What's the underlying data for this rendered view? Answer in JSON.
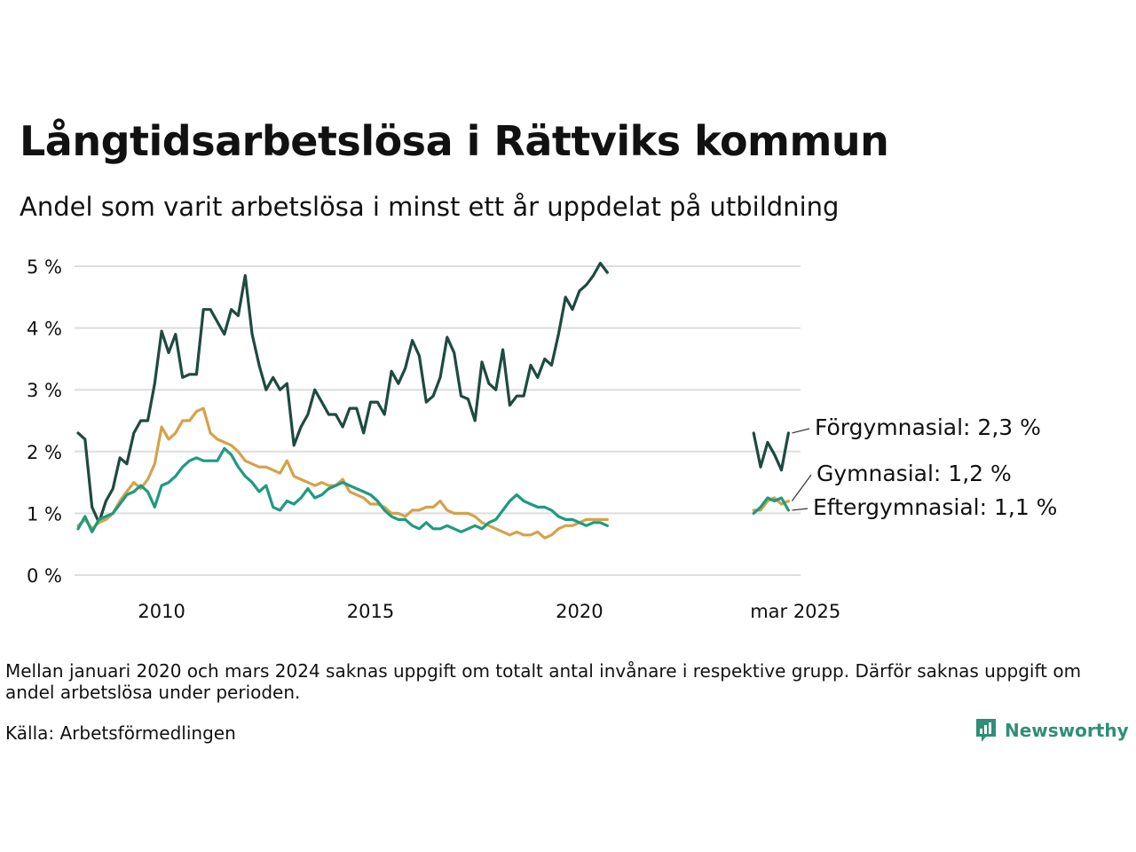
{
  "header": {
    "title": "Långtidsarbetslösa i Rättviks kommun",
    "subtitle": "Andel som varit arbetslösa i minst ett år uppdelat på utbildning"
  },
  "footer": {
    "note": "Mellan januari 2020 och mars 2024 saknas uppgift om totalt antal invånare i respektive grupp. Därför saknas uppgift om andel arbetslösa under perioden.",
    "source": "Källa: Arbetsförmedlingen",
    "brand": "Newsworthy"
  },
  "colors": {
    "forgymnasial": "#1e4a40",
    "gymnasial": "#d4a24c",
    "eftergymnasial": "#1f9a80",
    "grid": "#dddddd",
    "brand": "#2f8f76"
  },
  "chart_data": {
    "type": "line",
    "ylim": [
      0,
      5
    ],
    "yticks": [
      "0 %",
      "1 %",
      "2 %",
      "3 %",
      "4 %",
      "5 %"
    ],
    "xticks": [
      {
        "x": 2010.0,
        "label": "2010"
      },
      {
        "x": 2015.0,
        "label": "2015"
      },
      {
        "x": 2020.0,
        "label": "2020"
      },
      {
        "x": 2025.17,
        "label": "mar 2025"
      }
    ],
    "grid": true,
    "series": [
      {
        "key": "forgymnasial",
        "end_label": "Förgymnasial: 2,3 %",
        "segments": [
          {
            "start": 2008.0,
            "step": 0.16667,
            "values": [
              2.3,
              2.2,
              1.1,
              0.85,
              1.2,
              1.4,
              1.9,
              1.8,
              2.3,
              2.5,
              2.5,
              3.1,
              3.95,
              3.6,
              3.9,
              3.2,
              3.25,
              3.25,
              4.3,
              4.3,
              4.1,
              3.9,
              4.3,
              4.2,
              4.85,
              3.9,
              3.4,
              3.0,
              3.2,
              3.0,
              3.1,
              2.1,
              2.4,
              2.6,
              3.0,
              2.8,
              2.6,
              2.6,
              2.4,
              2.7,
              2.7,
              2.3,
              2.8,
              2.8,
              2.6,
              3.3,
              3.1,
              3.35,
              3.8,
              3.55,
              2.8,
              2.9,
              3.2,
              3.85,
              3.6,
              2.9,
              2.85,
              2.5,
              3.45,
              3.1,
              3.0,
              3.65,
              2.75,
              2.9,
              2.9,
              3.4,
              3.2,
              3.5,
              3.4,
              3.9,
              4.5,
              4.3,
              4.6,
              4.7,
              4.85,
              5.05,
              4.9
            ]
          },
          {
            "start": 2024.17,
            "step": 0.16667,
            "values": [
              2.3,
              1.75,
              2.15,
              1.95,
              1.7,
              2.3
            ]
          }
        ]
      },
      {
        "key": "gymnasial",
        "end_label": "Gymnasial: 1,2 %",
        "segments": [
          {
            "start": 2008.0,
            "step": 0.16667,
            "values": [
              0.8,
              0.9,
              0.75,
              0.85,
              0.9,
              1.0,
              1.2,
              1.35,
              1.5,
              1.4,
              1.55,
              1.8,
              2.4,
              2.2,
              2.3,
              2.5,
              2.5,
              2.65,
              2.7,
              2.3,
              2.2,
              2.15,
              2.1,
              2.0,
              1.85,
              1.8,
              1.75,
              1.75,
              1.7,
              1.65,
              1.85,
              1.6,
              1.55,
              1.5,
              1.45,
              1.5,
              1.45,
              1.45,
              1.55,
              1.35,
              1.3,
              1.25,
              1.15,
              1.15,
              1.1,
              1.0,
              1.0,
              0.95,
              1.05,
              1.05,
              1.1,
              1.1,
              1.2,
              1.05,
              1.0,
              1.0,
              1.0,
              0.95,
              0.85,
              0.8,
              0.75,
              0.7,
              0.65,
              0.7,
              0.65,
              0.65,
              0.7,
              0.6,
              0.65,
              0.75,
              0.8,
              0.8,
              0.85,
              0.9,
              0.9,
              0.9,
              0.9
            ]
          },
          {
            "start": 2024.17,
            "step": 0.16667,
            "values": [
              1.05,
              1.05,
              1.2,
              1.25,
              1.15,
              1.2
            ]
          }
        ]
      },
      {
        "key": "eftergymnasial",
        "end_label": "Eftergymnasial: 1,1 %",
        "segments": [
          {
            "start": 2008.0,
            "step": 0.16667,
            "values": [
              0.75,
              0.95,
              0.7,
              0.9,
              0.95,
              1.0,
              1.15,
              1.3,
              1.35,
              1.45,
              1.35,
              1.1,
              1.45,
              1.5,
              1.6,
              1.75,
              1.85,
              1.9,
              1.85,
              1.85,
              1.85,
              2.05,
              1.95,
              1.75,
              1.6,
              1.5,
              1.35,
              1.45,
              1.1,
              1.05,
              1.2,
              1.15,
              1.25,
              1.4,
              1.25,
              1.3,
              1.4,
              1.45,
              1.5,
              1.45,
              1.4,
              1.35,
              1.3,
              1.2,
              1.05,
              0.95,
              0.9,
              0.9,
              0.8,
              0.75,
              0.85,
              0.75,
              0.75,
              0.8,
              0.75,
              0.7,
              0.75,
              0.8,
              0.75,
              0.85,
              0.9,
              1.05,
              1.2,
              1.3,
              1.2,
              1.15,
              1.1,
              1.1,
              1.05,
              0.95,
              0.9,
              0.9,
              0.85,
              0.8,
              0.85,
              0.85,
              0.8
            ]
          },
          {
            "start": 2024.17,
            "step": 0.16667,
            "values": [
              1.0,
              1.1,
              1.25,
              1.2,
              1.25,
              1.05
            ]
          }
        ]
      }
    ]
  }
}
